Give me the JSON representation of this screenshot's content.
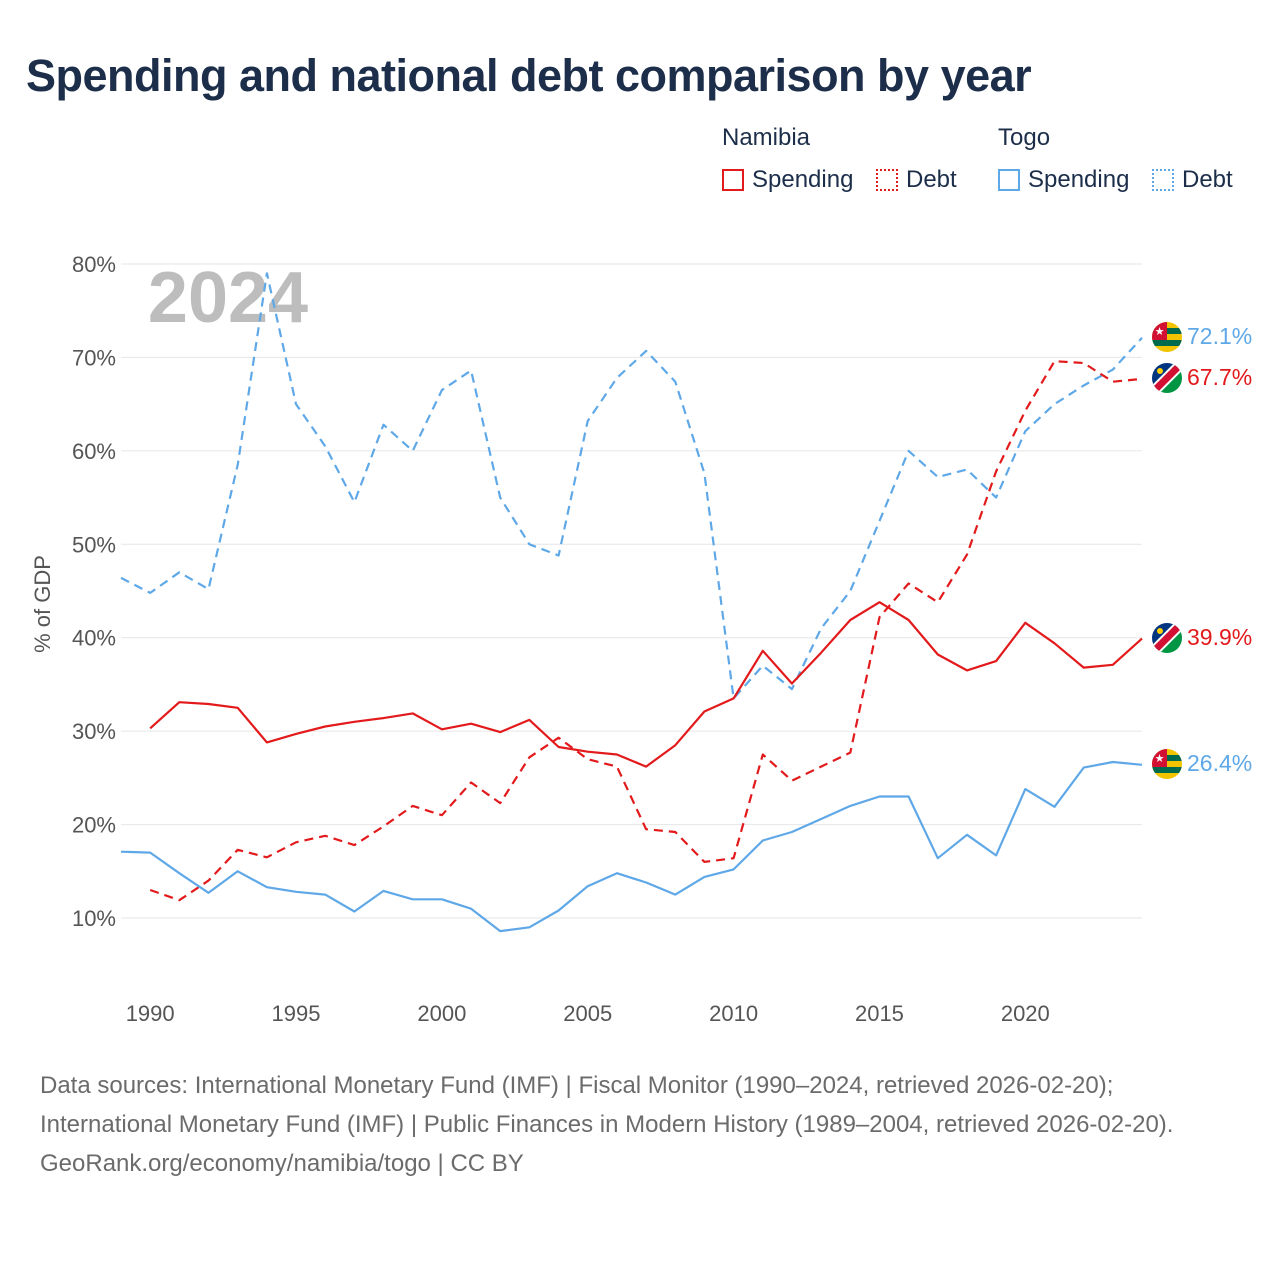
{
  "title": "Spending and national debt comparison by year",
  "legend": {
    "namibia": {
      "name": "Namibia",
      "spending": "Spending",
      "debt": "Debt"
    },
    "togo": {
      "name": "Togo",
      "spending": "Spending",
      "debt": "Debt"
    }
  },
  "colors": {
    "namibia": "#e31a1c",
    "togo": "#5fa8e8"
  },
  "chart_data": {
    "type": "line",
    "year_label": "2024",
    "ylabel": "% of GDP",
    "xlim": [
      1989,
      2024
    ],
    "ylim": [
      5,
      85
    ],
    "yticks": [
      10,
      20,
      30,
      40,
      50,
      60,
      70,
      80
    ],
    "ytick_labels": [
      "10%",
      "20%",
      "30%",
      "40%",
      "50%",
      "60%",
      "70%",
      "80%"
    ],
    "xticks": [
      1990,
      1995,
      2000,
      2005,
      2010,
      2015,
      2020
    ],
    "xtick_labels": [
      "1990",
      "1995",
      "2000",
      "2005",
      "2010",
      "2015",
      "2020"
    ],
    "series": [
      {
        "name": "Togo Debt",
        "country": "togo",
        "kind": "debt",
        "end_label": "72.1%",
        "x": [
          1989,
          1990,
          1991,
          1992,
          1993,
          1994,
          1995,
          1996,
          1997,
          1998,
          1999,
          2000,
          2001,
          2002,
          2003,
          2004,
          2005,
          2006,
          2007,
          2008,
          2009,
          2010,
          2011,
          2012,
          2013,
          2014,
          2015,
          2016,
          2017,
          2018,
          2019,
          2020,
          2021,
          2022,
          2023,
          2024
        ],
        "values": [
          46.4,
          44.8,
          47.0,
          45.2,
          58.5,
          79.0,
          65.0,
          60.5,
          54.5,
          62.8,
          60.0,
          66.5,
          68.6,
          55.0,
          50.0,
          48.8,
          63.2,
          67.8,
          70.7,
          67.4,
          57.6,
          33.5,
          37.0,
          34.5,
          41.0,
          45.0,
          52.5,
          60.0,
          57.2,
          58.0,
          55.0,
          62.1,
          65.0,
          67.0,
          68.7,
          72.1
        ]
      },
      {
        "name": "Namibia Debt",
        "country": "namibia",
        "kind": "debt",
        "end_label": "67.7%",
        "x": [
          1990,
          1991,
          1992,
          1993,
          1994,
          1995,
          1996,
          1997,
          1998,
          1999,
          2000,
          2001,
          2002,
          2003,
          2004,
          2005,
          2006,
          2007,
          2008,
          2009,
          2010,
          2011,
          2012,
          2013,
          2014,
          2015,
          2016,
          2017,
          2018,
          2019,
          2020,
          2021,
          2022,
          2023,
          2024
        ],
        "values": [
          13.0,
          11.9,
          14.0,
          17.3,
          16.5,
          18.1,
          18.8,
          17.8,
          19.8,
          22.0,
          21.0,
          24.5,
          22.3,
          27.2,
          29.3,
          27.0,
          26.2,
          19.5,
          19.2,
          16.0,
          16.4,
          27.5,
          24.7,
          26.2,
          27.7,
          42.2,
          45.8,
          43.8,
          48.9,
          57.8,
          64.3,
          69.6,
          69.4,
          67.4,
          67.7
        ]
      },
      {
        "name": "Namibia Spending",
        "country": "namibia",
        "kind": "spending",
        "end_label": "39.9%",
        "x": [
          1990,
          1991,
          1992,
          1993,
          1994,
          1995,
          1996,
          1997,
          1998,
          1999,
          2000,
          2001,
          2002,
          2003,
          2004,
          2005,
          2006,
          2007,
          2008,
          2009,
          2010,
          2011,
          2012,
          2013,
          2014,
          2015,
          2016,
          2017,
          2018,
          2019,
          2020,
          2021,
          2022,
          2023,
          2024
        ],
        "values": [
          30.3,
          33.1,
          32.9,
          32.5,
          28.8,
          29.7,
          30.5,
          31.0,
          31.4,
          31.9,
          30.2,
          30.8,
          29.9,
          31.2,
          28.3,
          27.8,
          27.5,
          26.2,
          28.5,
          32.1,
          33.5,
          38.6,
          35.1,
          38.4,
          41.9,
          43.8,
          41.9,
          38.2,
          36.5,
          37.5,
          41.6,
          39.4,
          36.8,
          37.1,
          39.9
        ]
      },
      {
        "name": "Togo Spending",
        "country": "togo",
        "kind": "spending",
        "end_label": "26.4%",
        "x": [
          1989,
          1990,
          1991,
          1992,
          1993,
          1994,
          1995,
          1996,
          1997,
          1998,
          1999,
          2000,
          2001,
          2002,
          2003,
          2004,
          2005,
          2006,
          2007,
          2008,
          2009,
          2010,
          2011,
          2012,
          2013,
          2014,
          2015,
          2016,
          2017,
          2018,
          2019,
          2020,
          2021,
          2022,
          2023,
          2024
        ],
        "values": [
          17.1,
          17.0,
          14.8,
          12.7,
          15.0,
          13.3,
          12.8,
          12.5,
          10.7,
          12.9,
          12.0,
          12.0,
          11.0,
          8.6,
          9.0,
          10.8,
          13.4,
          14.8,
          13.8,
          12.5,
          14.4,
          15.2,
          18.3,
          19.2,
          20.6,
          22.0,
          23.0,
          23.0,
          16.4,
          18.9,
          16.7,
          23.8,
          21.9,
          26.1,
          26.7,
          26.4
        ]
      }
    ]
  },
  "footer": {
    "sources": "Data sources: International Monetary Fund (IMF) | Fiscal Monitor (1990–2024, retrieved 2026-02-20); International Monetary Fund (IMF) | Public Finances in Modern History (1989–2004, retrieved 2026-02-20).",
    "credit": "GeoRank.org/economy/namibia/togo | CC BY"
  }
}
